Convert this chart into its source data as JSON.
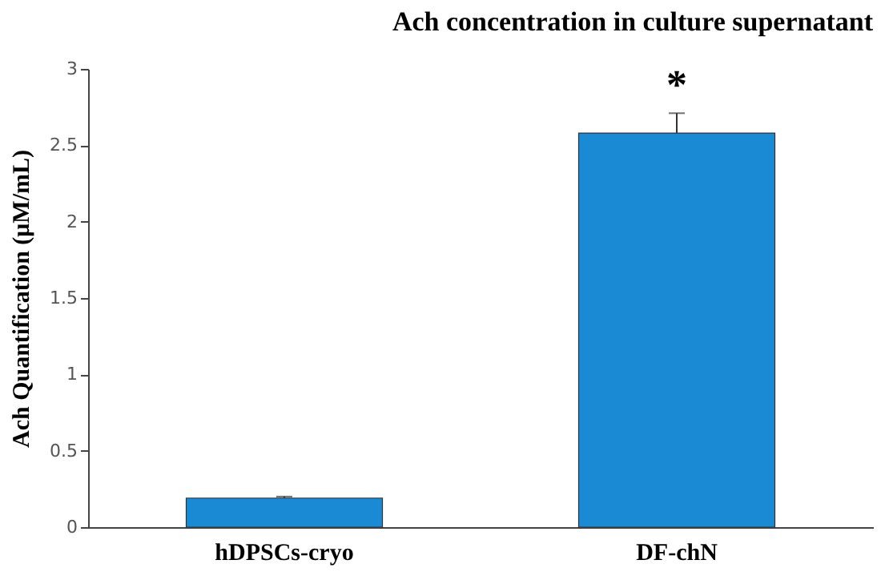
{
  "chart_data": {
    "type": "bar",
    "title": "Ach concentration in culture supernatant",
    "ylabel": "Ach Quantification (μM/mL)",
    "categories": [
      "hDPSCs-cryo",
      "DF-chN"
    ],
    "values": [
      0.19,
      2.58
    ],
    "errors": [
      0.01,
      0.13
    ],
    "color": "#1a8ad4",
    "ylim": [
      0,
      3
    ],
    "yticks": [
      0,
      0.5,
      1,
      1.5,
      2,
      2.5,
      3
    ],
    "grid": false,
    "annotations": [
      "*"
    ]
  }
}
